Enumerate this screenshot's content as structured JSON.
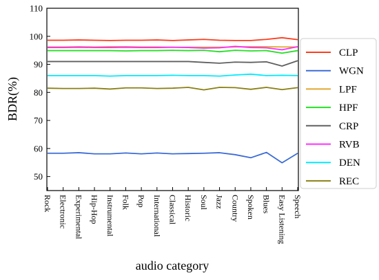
{
  "chart_data": {
    "type": "line",
    "title": "",
    "xlabel": "audio category",
    "ylabel": "BDR(%)",
    "ylim": [
      45,
      110
    ],
    "yticks": [
      50,
      60,
      70,
      80,
      90,
      100,
      110
    ],
    "categories": [
      "Rock",
      "Electronic",
      "Experimental",
      "Hip-Hop",
      "Instrumental",
      "Folk",
      "Pop",
      "International",
      "Classical",
      "Historic",
      "Soul",
      "Jazz",
      "Country",
      "Spoken",
      "Blues",
      "Easy Listening",
      "Speech"
    ],
    "grid": false,
    "legend_position": "right",
    "series": [
      {
        "name": "CLP",
        "color": "#ff3a1a",
        "values": [
          98.6,
          98.6,
          98.7,
          98.6,
          98.5,
          98.6,
          98.6,
          98.7,
          98.5,
          98.7,
          98.9,
          98.6,
          98.5,
          98.5,
          98.9,
          99.5,
          98.8
        ]
      },
      {
        "name": "WGN",
        "color": "#3b6bd6",
        "values": [
          58.3,
          58.3,
          58.5,
          58.1,
          58.1,
          58.4,
          58.1,
          58.4,
          58.1,
          58.2,
          58.3,
          58.5,
          57.8,
          56.7,
          58.6,
          54.9,
          58.3
        ]
      },
      {
        "name": "LPF",
        "color": "#e0a82e",
        "values": [
          96.2,
          96.2,
          96.3,
          96.2,
          96.3,
          96.3,
          96.2,
          96.2,
          96.1,
          96.1,
          96.1,
          96.1,
          96.2,
          96.3,
          96.3,
          96.2,
          96.2
        ]
      },
      {
        "name": "HPF",
        "color": "#22e022",
        "values": [
          94.9,
          94.9,
          94.9,
          94.9,
          94.9,
          94.8,
          94.9,
          94.9,
          95.0,
          94.9,
          95.0,
          94.5,
          95.0,
          94.8,
          94.9,
          94.0,
          94.9
        ]
      },
      {
        "name": "CRP",
        "color": "#5f5f5f",
        "values": [
          91.0,
          91.0,
          91.0,
          91.0,
          91.0,
          91.0,
          91.0,
          91.0,
          91.0,
          91.0,
          90.7,
          90.4,
          90.8,
          90.7,
          90.9,
          89.4,
          91.3
        ]
      },
      {
        "name": "RVB",
        "color": "#ff2aff",
        "values": [
          96.0,
          96.0,
          96.1,
          96.0,
          96.0,
          96.1,
          96.0,
          96.0,
          96.1,
          96.0,
          95.8,
          95.9,
          96.4,
          96.0,
          95.9,
          95.2,
          96.3
        ]
      },
      {
        "name": "DEN",
        "color": "#00eaff",
        "values": [
          86.0,
          86.0,
          86.0,
          86.0,
          85.8,
          86.0,
          86.0,
          86.0,
          86.1,
          86.0,
          86.0,
          85.8,
          86.2,
          86.5,
          86.0,
          86.1,
          86.0
        ]
      },
      {
        "name": "REC",
        "color": "#8a7f12",
        "values": [
          81.5,
          81.4,
          81.4,
          81.5,
          81.2,
          81.6,
          81.6,
          81.4,
          81.5,
          81.8,
          80.9,
          81.8,
          81.7,
          81.1,
          81.8,
          81.0,
          81.7
        ]
      }
    ]
  }
}
